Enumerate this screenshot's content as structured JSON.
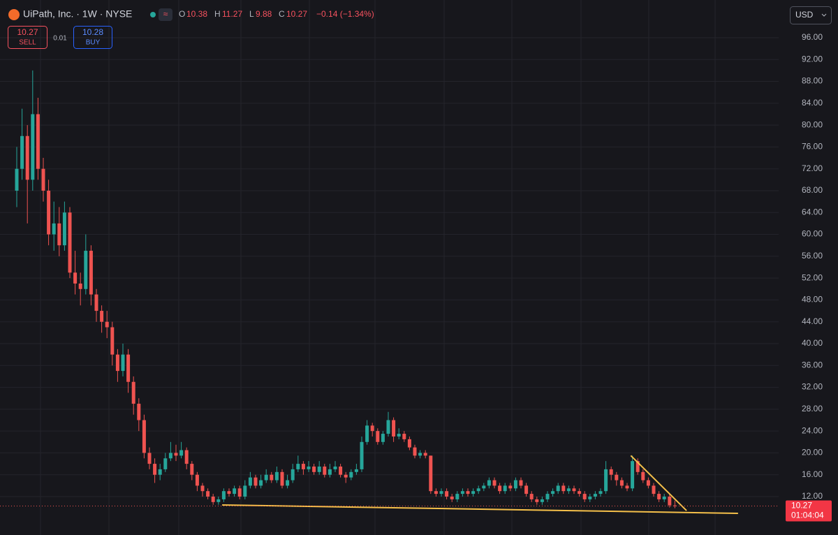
{
  "header": {
    "symbol": "UiPath, Inc. · 1W · NYSE",
    "o_label": "O",
    "h_label": "H",
    "l_label": "L",
    "c_label": "C",
    "change": "−0.14 (−1.34%)",
    "sell_price": 10.27,
    "sell_label": "SELL",
    "spread": 0.01,
    "buy_price": 10.28,
    "buy_label": "BUY",
    "currency": "USD",
    "countdown": "01:04:04"
  },
  "chart_data": {
    "type": "candlestick",
    "open": [
      68,
      72,
      78,
      70,
      82,
      72,
      68,
      60,
      62,
      58,
      64,
      53,
      51,
      50,
      57,
      49,
      46,
      44,
      43,
      38,
      35,
      38,
      33,
      29,
      26,
      20,
      18,
      16,
      17,
      19,
      20,
      19.5,
      20.5,
      18,
      16,
      14,
      13,
      12,
      11,
      11.5,
      13,
      12.5,
      13.5,
      12,
      14,
      15.5,
      14,
      15,
      16,
      15,
      16.5,
      14,
      15,
      17,
      18,
      17,
      17.5,
      16.5,
      17.5,
      16,
      17,
      17.5,
      16,
      15.5,
      16.5,
      17,
      22,
      25,
      24,
      22,
      23.5,
      26,
      23,
      23.5,
      22.5,
      21,
      19.5,
      20,
      19.5,
      13,
      12.5,
      13,
      12,
      11.5,
      12.5,
      13,
      12.5,
      13,
      13.5,
      14,
      15,
      14,
      13,
      14,
      13.5,
      15,
      14,
      12.5,
      11.5,
      11,
      11.5,
      12.5,
      13,
      14,
      13,
      13.5,
      13,
      12.5,
      11.5,
      12,
      12.5,
      13,
      17,
      16,
      15,
      14,
      13.5,
      18.5,
      16.5,
      15,
      14,
      12.5,
      11.5,
      12,
      10.38
    ],
    "high": [
      76,
      83,
      80,
      90,
      85,
      74,
      70,
      66,
      65,
      66,
      65,
      57,
      53,
      60,
      58,
      50,
      47,
      46,
      44,
      39,
      40,
      39,
      34,
      30,
      27,
      21,
      19,
      18,
      20,
      22,
      21.5,
      22,
      21,
      18.5,
      16.5,
      14.5,
      13.5,
      12.5,
      12,
      13.5,
      13.5,
      14,
      14,
      15,
      16.5,
      16,
      16,
      17,
      16.5,
      17.5,
      17,
      16,
      18,
      19.5,
      18.5,
      18.5,
      18,
      18.5,
      18,
      18,
      18.5,
      18,
      16.5,
      17,
      18,
      23,
      26,
      25.5,
      24.5,
      24,
      27.5,
      26.5,
      24.5,
      24,
      23,
      21.5,
      20.5,
      20.5,
      19.5,
      13.5,
      13.5,
      13.5,
      12.5,
      13,
      13.5,
      13.5,
      13.5,
      14,
      14.5,
      15.5,
      15.5,
      14.5,
      14.5,
      14.5,
      15.5,
      15.5,
      14.5,
      13,
      12,
      12,
      13,
      13.5,
      14.5,
      14.5,
      14,
      14,
      13.5,
      13,
      12.5,
      13,
      13.5,
      18.5,
      17.5,
      16.5,
      15.5,
      14.5,
      19.5,
      19,
      17,
      15.5,
      14.5,
      13,
      12.5,
      12.5,
      11.27
    ],
    "low": [
      65,
      70,
      62,
      68,
      70,
      66,
      58,
      57,
      56,
      57,
      52,
      49,
      47,
      49,
      47,
      44,
      42,
      41,
      36,
      33,
      34,
      31,
      27,
      24,
      19,
      17,
      14.5,
      15,
      16.5,
      18.5,
      18.5,
      19,
      17,
      15,
      13,
      12,
      11.5,
      10.5,
      10.5,
      11,
      12,
      12,
      11.5,
      11.5,
      13.5,
      13.5,
      13.5,
      14.5,
      14.5,
      14.5,
      13.5,
      13.5,
      14.5,
      16.5,
      16,
      16.5,
      16,
      16,
      15.5,
      15.5,
      16.5,
      15.5,
      14.5,
      15,
      16,
      16.5,
      21.5,
      23,
      21.5,
      21.5,
      23,
      22,
      22.5,
      22,
      20.5,
      19,
      19,
      19,
      12.5,
      12,
      12,
      11.5,
      11,
      11,
      12,
      12,
      12,
      12.5,
      13,
      13.5,
      13.5,
      12.5,
      12.5,
      13,
      13,
      13.5,
      12,
      11,
      10.5,
      10.5,
      11,
      12,
      12.5,
      12.5,
      12.5,
      12.5,
      12,
      11,
      11,
      11.5,
      12,
      12.5,
      15,
      14,
      13.5,
      13,
      13,
      16,
      14.5,
      13.5,
      12,
      11,
      11,
      10,
      9.88
    ],
    "close": [
      72,
      78,
      70,
      82,
      72,
      68,
      60,
      62,
      58,
      64,
      53,
      51,
      50,
      57,
      49,
      46,
      44,
      43,
      38,
      35,
      38,
      33,
      29,
      26,
      20,
      18,
      16,
      17,
      19,
      20,
      19.5,
      20.5,
      18,
      16,
      14,
      13,
      12,
      11,
      11.5,
      13,
      12.5,
      13.5,
      12,
      14,
      15.5,
      14,
      15,
      16,
      15,
      16.5,
      14,
      15,
      17,
      18,
      17,
      17.5,
      16.5,
      17.5,
      16,
      17,
      17.5,
      16,
      15.5,
      16.5,
      17,
      22,
      25,
      24,
      22,
      23.5,
      26,
      23,
      23.5,
      22.5,
      21,
      19.5,
      20,
      19.5,
      13,
      12.5,
      13,
      12,
      11.5,
      12.5,
      13,
      12.5,
      13,
      13.5,
      14,
      15,
      14,
      13,
      14,
      13.5,
      15,
      14,
      12.5,
      11.5,
      11,
      11.5,
      12.5,
      13,
      14,
      13,
      13.5,
      13,
      12.5,
      11.5,
      12,
      12.5,
      13,
      17,
      16,
      15,
      14,
      13.5,
      18.5,
      16.5,
      15,
      14,
      12.5,
      11.5,
      12,
      10.41,
      10.27
    ],
    "up_color": "#26a69a",
    "down_color": "#ef5350",
    "ylim": [
      4.97,
      102.9
    ],
    "yticks": [
      {
        "value": 12,
        "label": "12.00"
      },
      {
        "value": 16,
        "label": "16.00"
      },
      {
        "value": 20,
        "label": "20.00"
      },
      {
        "value": 24,
        "label": "24.00"
      },
      {
        "value": 28,
        "label": "28.00"
      },
      {
        "value": 32,
        "label": "32.00"
      },
      {
        "value": 36,
        "label": "36.00"
      },
      {
        "value": 40,
        "label": "40.00"
      },
      {
        "value": 44,
        "label": "44.00"
      },
      {
        "value": 48,
        "label": "48.00"
      },
      {
        "value": 52,
        "label": "52.00"
      },
      {
        "value": 56,
        "label": "56.00"
      },
      {
        "value": 60,
        "label": "60.00"
      },
      {
        "value": 64,
        "label": "64.00"
      },
      {
        "value": 68,
        "label": "68.00"
      },
      {
        "value": 72,
        "label": "72.00"
      },
      {
        "value": 76,
        "label": "76.00"
      },
      {
        "value": 80,
        "label": "80.00"
      },
      {
        "value": 84,
        "label": "84.00"
      },
      {
        "value": 88,
        "label": "88.00"
      },
      {
        "value": 92,
        "label": "92.00"
      },
      {
        "value": 96,
        "label": "96.00"
      }
    ],
    "grid": true,
    "trendlines": [
      {
        "color": "#f5c04a",
        "x": [
          38.7,
          135.9
        ],
        "y": [
          10.47,
          8.93
        ]
      },
      {
        "color": "#f5c04a",
        "x": [
          115.7,
          126.2
        ],
        "y": [
          19.5,
          9.44
        ]
      }
    ]
  }
}
